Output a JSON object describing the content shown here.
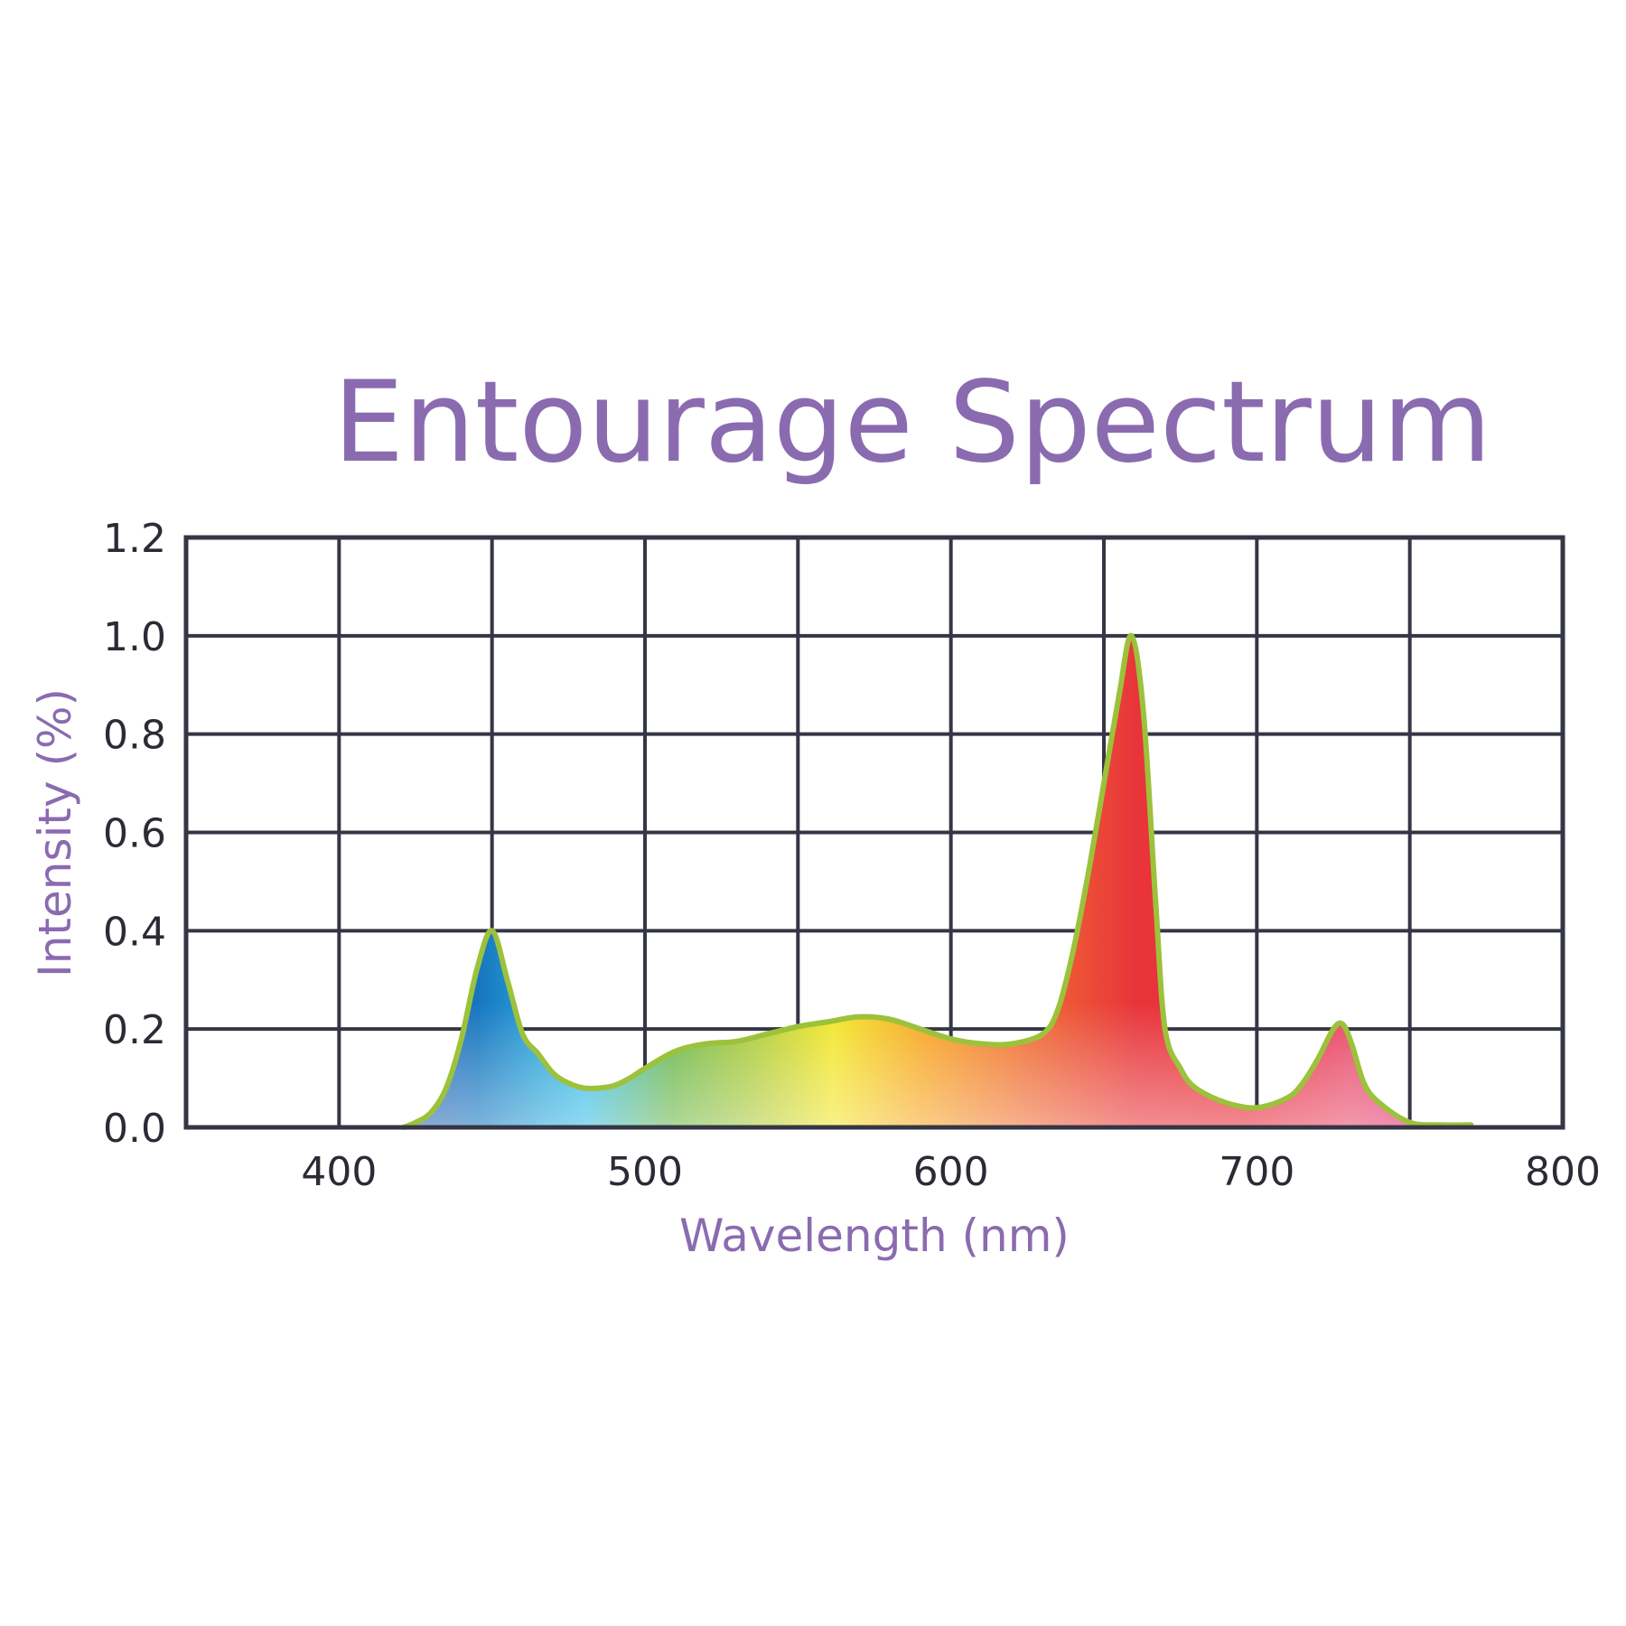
{
  "chart_data": {
    "type": "area",
    "title": "Entourage Spectrum",
    "xlabel": "Wavelength (nm)",
    "ylabel": "Intensity (%)",
    "xlim": [
      350,
      800
    ],
    "ylim": [
      0,
      1.2
    ],
    "x_ticks": [
      400,
      500,
      600,
      700,
      800
    ],
    "x_tick_labels": [
      "400",
      "500",
      "600",
      "700",
      "800"
    ],
    "y_ticks": [
      0,
      0.2,
      0.4,
      0.6,
      0.8,
      1.0,
      1.2
    ],
    "y_tick_labels": [
      "0.0",
      "0.2",
      "0.4",
      "0.6",
      "0.8",
      "1.0",
      "1.2"
    ],
    "x_grid_step": 50,
    "grid": true,
    "line_color": "#9cc23b",
    "grid_color": "#353645",
    "series": [
      {
        "x": [
          421,
          425,
          430,
          435,
          440,
          445,
          450,
          455,
          460,
          465,
          470,
          475,
          480,
          485,
          490,
          495,
          500,
          510,
          520,
          530,
          540,
          550,
          560,
          570,
          580,
          590,
          600,
          610,
          620,
          630,
          635,
          640,
          645,
          650,
          655,
          659,
          663,
          667,
          670,
          675,
          680,
          690,
          700,
          710,
          715,
          720,
          725,
          728,
          731,
          735,
          740,
          750,
          760,
          770
        ],
        "y": [
          0.0,
          0.01,
          0.03,
          0.08,
          0.18,
          0.32,
          0.4,
          0.3,
          0.19,
          0.15,
          0.11,
          0.09,
          0.08,
          0.08,
          0.085,
          0.1,
          0.12,
          0.155,
          0.17,
          0.175,
          0.19,
          0.205,
          0.215,
          0.225,
          0.22,
          0.2,
          0.18,
          0.17,
          0.17,
          0.19,
          0.24,
          0.36,
          0.52,
          0.7,
          0.88,
          1.0,
          0.84,
          0.45,
          0.2,
          0.12,
          0.08,
          0.05,
          0.04,
          0.06,
          0.09,
          0.14,
          0.2,
          0.21,
          0.17,
          0.09,
          0.05,
          0.01,
          0.005,
          0.005
        ]
      }
    ]
  }
}
